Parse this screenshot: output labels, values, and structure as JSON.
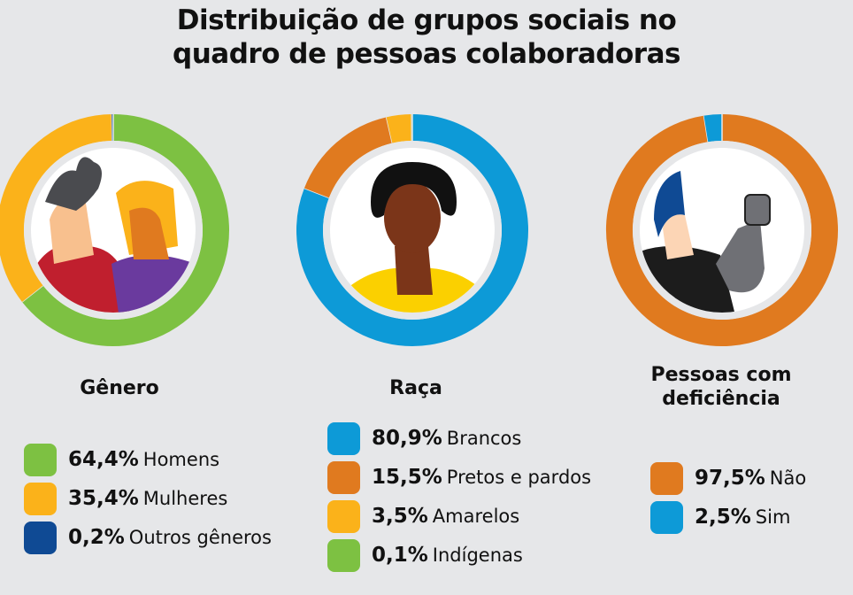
{
  "title_line1": "Distribuição de grupos sociais no",
  "title_line2": "quadro de pessoas colaboradoras",
  "chart_data": [
    {
      "type": "pie",
      "label": "Gênero",
      "donut": true,
      "slices": [
        {
          "name": "Homens",
          "value": 64.4,
          "text": "64,4%",
          "color": "#7dc142"
        },
        {
          "name": "Mulheres",
          "value": 35.4,
          "text": "35,4%",
          "color": "#fbb21a"
        },
        {
          "name": "Outros gêneros",
          "value": 0.2,
          "text": "0,2%",
          "color": "#0f4a94"
        }
      ]
    },
    {
      "type": "pie",
      "label": "Raça",
      "donut": true,
      "slices": [
        {
          "name": "Brancos",
          "value": 80.9,
          "text": "80,9%",
          "color": "#0d9ad7"
        },
        {
          "name": "Pretos e pardos",
          "value": 15.5,
          "text": "15,5%",
          "color": "#e07a1f"
        },
        {
          "name": "Amarelos",
          "value": 3.5,
          "text": "3,5%",
          "color": "#fbb21a"
        },
        {
          "name": "Indígenas",
          "value": 0.1,
          "text": "0,1%",
          "color": "#7dc142"
        }
      ]
    },
    {
      "type": "pie",
      "label_line1": "Pessoas com",
      "label_line2": "deficiência",
      "donut": true,
      "slices": [
        {
          "name": "Não",
          "value": 97.5,
          "text": "97,5%",
          "color": "#e07a1f"
        },
        {
          "name": "Sim",
          "value": 2.5,
          "text": "2,5%",
          "color": "#0d9ad7"
        }
      ]
    }
  ]
}
